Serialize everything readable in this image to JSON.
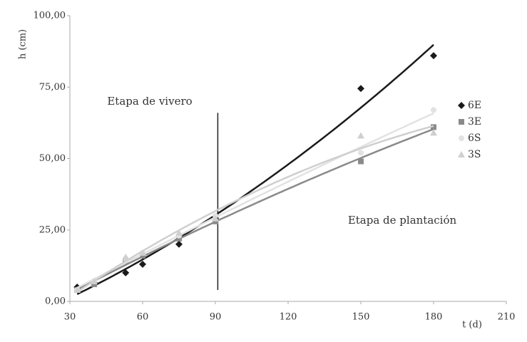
{
  "chart_data": {
    "type": "scatter",
    "trendline": "polynomial-2",
    "xlabel": "t (d)",
    "ylabel": "h (cm)",
    "xlim": [
      30,
      210
    ],
    "xticks": [
      30,
      60,
      90,
      120,
      150,
      180,
      210
    ],
    "ylim": [
      0,
      100
    ],
    "yticks": [
      {
        "value": 0,
        "label": "0,00"
      },
      {
        "value": 25,
        "label": "25,00"
      },
      {
        "value": 50,
        "label": "50,00"
      },
      {
        "value": 75,
        "label": "75,00"
      },
      {
        "value": 100,
        "label": "100,00"
      }
    ],
    "annotations": [
      "Etapa de vivero",
      "Etapa de plantación"
    ],
    "divider": {
      "x": 91,
      "y": [
        4,
        66
      ]
    },
    "x": [
      33,
      40,
      53,
      60,
      75,
      90,
      150,
      180
    ],
    "series": [
      {
        "name": "6E",
        "color": "#1a1a1a",
        "marker": "diamond",
        "values": [
          5,
          6.5,
          10,
          13,
          20,
          29,
          74.5,
          86
        ]
      },
      {
        "name": "3E",
        "color": "#8a8a8a",
        "marker": "square",
        "values": [
          4,
          6,
          14,
          16,
          22,
          28,
          49,
          61
        ]
      },
      {
        "name": "6S",
        "color": "#e2e2e2",
        "marker": "circle",
        "values": [
          4,
          7,
          15,
          17,
          23,
          30,
          52,
          67
        ]
      },
      {
        "name": "3S",
        "color": "#cfcfcf",
        "marker": "triangle",
        "values": [
          4,
          7,
          15.5,
          17,
          24,
          29,
          58,
          59
        ]
      }
    ]
  }
}
